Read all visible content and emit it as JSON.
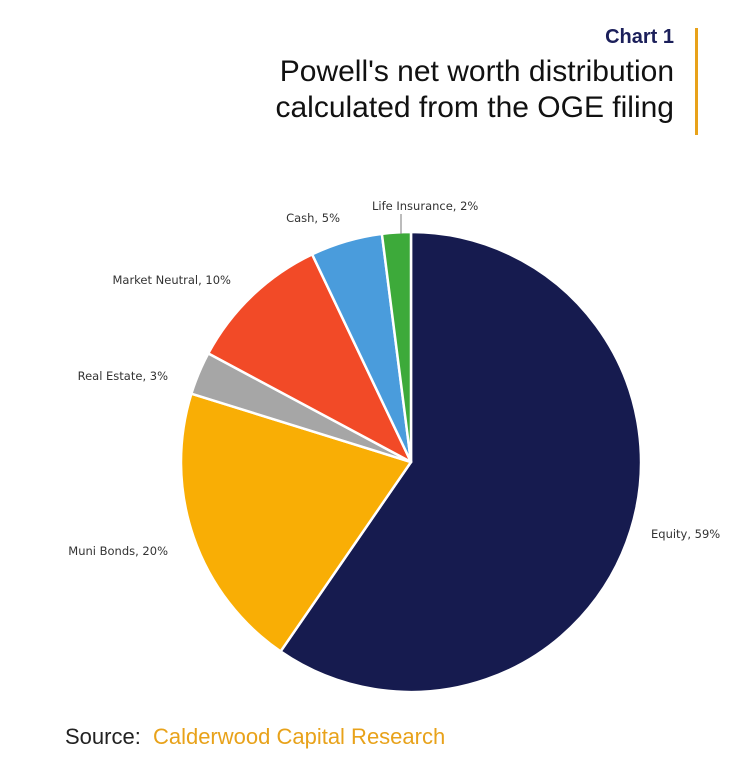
{
  "header": {
    "chart_label": "Chart 1",
    "title_line1": "Powell's net worth distribution",
    "title_line2": "calculated from the OGE filing"
  },
  "footer": {
    "source_label": "Source:",
    "source_name": "Calderwood Capital Research"
  },
  "colors": {
    "accent": "#E8A21A",
    "chart_label": "#1B1F5A"
  },
  "chart_data": {
    "type": "pie",
    "start": "12 o'clock, clockwise",
    "slices": [
      {
        "label": "Equity, 59%",
        "value": 59,
        "color": "#161B4F"
      },
      {
        "label": "Muni Bonds, 20%",
        "value": 20,
        "color": "#F9AE05"
      },
      {
        "label": "Real Estate, 3%",
        "value": 3,
        "color": "#A6A6A6"
      },
      {
        "label": "Market Neutral, 10%",
        "value": 10,
        "color": "#F24A27"
      },
      {
        "label": "Cash, 5%",
        "value": 5,
        "color": "#4A9CDC"
      },
      {
        "label": "Life Insurance, 2%",
        "value": 2,
        "color": "#3DAA3A"
      }
    ]
  }
}
